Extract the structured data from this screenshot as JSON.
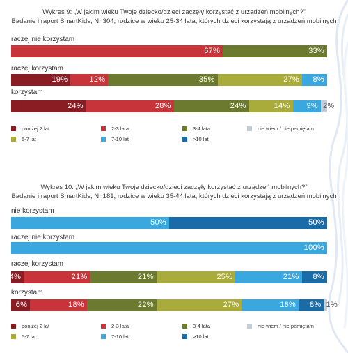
{
  "colors": {
    "ponizej2": "#8a1c24",
    "lata2_3": "#c7343a",
    "lata3_4": "#6b7a2e",
    "lat5_7": "#a9ab3a",
    "lat7_10": "#3aa7df",
    "lat10": "#1a6ca8",
    "niewiem": "#c5ced8"
  },
  "chart_data": [
    {
      "type": "bar",
      "orientation": "horizontal-stacked",
      "title": "Wykres 9:  „W jakim wieku Twoje dziecko/dzieci zaczęły korzystać z urządzeń mobilnych?”",
      "subtitle": "Badanie i raport SmartKids, N=304, rodzice w wieku 25-34 lata, których dzieci korzystają z urządzeń mobilnych",
      "unit": "%",
      "legend": [
        {
          "key": "ponizej2",
          "label": "poniżej 2 lat"
        },
        {
          "key": "lata2_3",
          "label": "2-3 lata"
        },
        {
          "key": "lata3_4",
          "label": "3-4 lata"
        },
        {
          "key": "niewiem",
          "label": "nie wiem / nie pamiętam"
        },
        {
          "key": "lat5_7",
          "label": "5-7 lat"
        },
        {
          "key": "lat7_10",
          "label": "7-10 lat"
        },
        {
          "key": "lat10",
          "label": ">10 lat"
        }
      ],
      "categories": [
        "raczej nie korzystam",
        "raczej korzystam",
        "korzystam"
      ],
      "rows": [
        {
          "label": "raczej nie korzystam",
          "segments": [
            {
              "key": "lata2_3",
              "value": 67
            },
            {
              "key": "lata3_4",
              "value": 33
            }
          ]
        },
        {
          "label": "raczej korzystam",
          "segments": [
            {
              "key": "ponizej2",
              "value": 19
            },
            {
              "key": "lata2_3",
              "value": 12
            },
            {
              "key": "lata3_4",
              "value": 35
            },
            {
              "key": "lat5_7",
              "value": 27
            },
            {
              "key": "lat7_10",
              "value": 8
            }
          ]
        },
        {
          "label": "korzystam",
          "segments": [
            {
              "key": "ponizej2",
              "value": 24
            },
            {
              "key": "lata2_3",
              "value": 28
            },
            {
              "key": "lata3_4",
              "value": 24
            },
            {
              "key": "lat5_7",
              "value": 14
            },
            {
              "key": "lat7_10",
              "value": 9
            },
            {
              "key": "niewiem",
              "value": 2
            }
          ]
        }
      ]
    },
    {
      "type": "bar",
      "orientation": "horizontal-stacked",
      "title": "Wykres 10:  „W jakim wieku Twoje dziecko/dzieci zaczęły korzystać z urządzeń mobilnych?”",
      "subtitle": "Badanie i raport SmartKids, N=181, rodzice w wieku 35-44 lata, których dzieci korzystają z urządzeń mobilnych",
      "unit": "%",
      "legend": [
        {
          "key": "ponizej2",
          "label": "poniżej 2 lat"
        },
        {
          "key": "lata2_3",
          "label": "2-3 lata"
        },
        {
          "key": "lata3_4",
          "label": "3-4 lata"
        },
        {
          "key": "niewiem",
          "label": "nie wiem / nie pamiętam"
        },
        {
          "key": "lat5_7",
          "label": "5-7 lat"
        },
        {
          "key": "lat7_10",
          "label": "7-10 lat"
        },
        {
          "key": "lat10",
          "label": ">10 lat"
        }
      ],
      "categories": [
        "nie korzystam",
        "raczej nie korzystam",
        "raczej korzystam",
        "korzystam"
      ],
      "rows": [
        {
          "label": "nie korzystam",
          "segments": [
            {
              "key": "lat7_10",
              "value": 50
            },
            {
              "key": "lat10",
              "value": 50
            }
          ]
        },
        {
          "label": "raczej nie korzystam",
          "segments": [
            {
              "key": "lat7_10",
              "value": 100
            }
          ]
        },
        {
          "label": "raczej korzystam",
          "segments": [
            {
              "key": "ponizej2",
              "value": 4
            },
            {
              "key": "lata2_3",
              "value": 21
            },
            {
              "key": "lata3_4",
              "value": 21
            },
            {
              "key": "lat5_7",
              "value": 25
            },
            {
              "key": "lat7_10",
              "value": 21
            },
            {
              "key": "lat10",
              "value": 8
            }
          ]
        },
        {
          "label": "korzystam",
          "segments": [
            {
              "key": "ponizej2",
              "value": 6
            },
            {
              "key": "lata2_3",
              "value": 18
            },
            {
              "key": "lata3_4",
              "value": 22
            },
            {
              "key": "lat5_7",
              "value": 27
            },
            {
              "key": "lat7_10",
              "value": 18
            },
            {
              "key": "lat10",
              "value": 8
            },
            {
              "key": "niewiem",
              "value": 1
            }
          ]
        }
      ]
    }
  ]
}
